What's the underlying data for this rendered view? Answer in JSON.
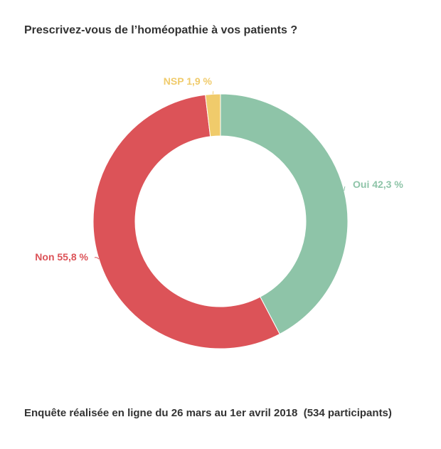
{
  "chart_data": {
    "type": "pie",
    "title": "Prescrivez-vous de l’homéopathie à vos patients ?",
    "footer": "Enquête réalisée en ligne du 26 mars au 1er avril 2018  (534 participants)",
    "slices": [
      {
        "label": "Oui",
        "value": 42.3,
        "display": "Oui 42,3 %",
        "color": "#8ec4a8"
      },
      {
        "label": "Non",
        "value": 55.8,
        "display": "Non 55,8 %",
        "color": "#dc5358"
      },
      {
        "label": "NSP",
        "value": 1.9,
        "display": "NSP 1,9 %",
        "color": "#f0cb6b"
      }
    ],
    "donut": true,
    "legend": "none"
  }
}
